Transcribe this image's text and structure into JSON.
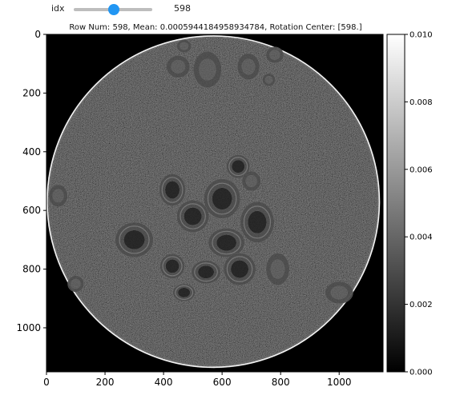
{
  "widget": {
    "slider": {
      "label": "idx",
      "value": 598,
      "value_text": "598",
      "min": 0,
      "max": 1167,
      "thumb_color": "#2196f3"
    }
  },
  "figure": {
    "title": "Row Num: 598, Mean: 0.0005944184958934784, Rotation Center: [598.]",
    "colormap": "gray",
    "background": "#000000"
  },
  "chart_data": {
    "type": "heatmap",
    "title": "Row Num: 598, Mean: 0.0005944184958934784, Rotation Center: [598.]",
    "xlim": [
      0,
      1150
    ],
    "ylim": [
      1150,
      0
    ],
    "x_ticks": [
      0,
      200,
      400,
      600,
      800,
      1000
    ],
    "y_ticks": [
      0,
      200,
      400,
      600,
      800,
      1000
    ],
    "x_tick_labels": [
      "0",
      "200",
      "400",
      "600",
      "800",
      "1000"
    ],
    "y_tick_labels": [
      "0",
      "200",
      "400",
      "600",
      "800",
      "1000"
    ],
    "colorbar": {
      "min": 0.0,
      "max": 0.01,
      "ticks": [
        0.0,
        0.002,
        0.004,
        0.006,
        0.008,
        0.01
      ],
      "tick_labels": [
        "0.000",
        "0.002",
        "0.004",
        "0.006",
        "0.008",
        "0.010"
      ]
    },
    "circle": {
      "cx": 570,
      "cy": 570,
      "r": 570
    },
    "features": [
      {
        "kind": "blob",
        "x": 550,
        "y": 120,
        "rx": 48,
        "ry": 62,
        "ring": false
      },
      {
        "kind": "blob",
        "x": 450,
        "y": 110,
        "rx": 40,
        "ry": 38,
        "ring": false
      },
      {
        "kind": "blob",
        "x": 690,
        "y": 110,
        "rx": 38,
        "ry": 45,
        "ring": false
      },
      {
        "kind": "blob",
        "x": 780,
        "y": 70,
        "rx": 30,
        "ry": 28,
        "ring": false
      },
      {
        "kind": "blob",
        "x": 760,
        "y": 155,
        "rx": 22,
        "ry": 22,
        "ring": false
      },
      {
        "kind": "blob",
        "x": 470,
        "y": 40,
        "rx": 25,
        "ry": 22,
        "ring": false
      },
      {
        "kind": "blob",
        "x": 655,
        "y": 450,
        "rx": 40,
        "ry": 40,
        "ring": true
      },
      {
        "kind": "blob",
        "x": 700,
        "y": 500,
        "rx": 32,
        "ry": 34,
        "ring": false
      },
      {
        "kind": "blob",
        "x": 430,
        "y": 530,
        "rx": 45,
        "ry": 55,
        "ring": true
      },
      {
        "kind": "blob",
        "x": 600,
        "y": 560,
        "rx": 62,
        "ry": 68,
        "ring": true
      },
      {
        "kind": "blob",
        "x": 500,
        "y": 620,
        "rx": 55,
        "ry": 55,
        "ring": true
      },
      {
        "kind": "blob",
        "x": 720,
        "y": 640,
        "rx": 58,
        "ry": 70,
        "ring": true
      },
      {
        "kind": "blob",
        "x": 300,
        "y": 700,
        "rx": 65,
        "ry": 60,
        "ring": true
      },
      {
        "kind": "blob",
        "x": 615,
        "y": 710,
        "rx": 62,
        "ry": 50,
        "ring": true
      },
      {
        "kind": "blob",
        "x": 430,
        "y": 790,
        "rx": 42,
        "ry": 42,
        "ring": true
      },
      {
        "kind": "blob",
        "x": 545,
        "y": 810,
        "rx": 50,
        "ry": 40,
        "ring": true
      },
      {
        "kind": "blob",
        "x": 660,
        "y": 800,
        "rx": 55,
        "ry": 55,
        "ring": true
      },
      {
        "kind": "blob",
        "x": 790,
        "y": 800,
        "rx": 40,
        "ry": 55,
        "ring": false
      },
      {
        "kind": "blob",
        "x": 470,
        "y": 880,
        "rx": 38,
        "ry": 30,
        "ring": true
      },
      {
        "kind": "blob",
        "x": 40,
        "y": 550,
        "rx": 32,
        "ry": 38,
        "ring": false
      },
      {
        "kind": "blob",
        "x": 100,
        "y": 850,
        "rx": 28,
        "ry": 28,
        "ring": false
      },
      {
        "kind": "blob",
        "x": 1000,
        "y": 880,
        "rx": 48,
        "ry": 38,
        "ring": false
      }
    ]
  }
}
